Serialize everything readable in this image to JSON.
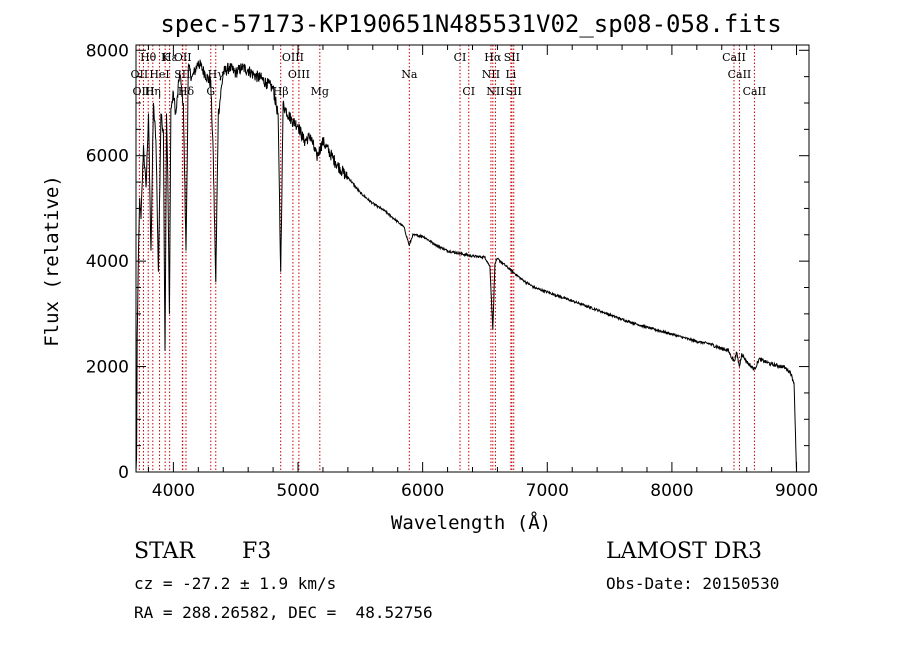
{
  "chart_data": {
    "type": "line",
    "title": "spec-57173-KP190651N485531V02_sp08-058.fits",
    "xlabel": "Wavelength (Å)",
    "ylabel": "Flux (relative)",
    "xlim": [
      3700,
      9100
    ],
    "ylim": [
      0,
      8100
    ],
    "xticks": [
      4000,
      5000,
      6000,
      7000,
      8000,
      9000
    ],
    "xtick_labels": [
      "4000",
      "5000",
      "6000",
      "7000",
      "8000",
      "9000"
    ],
    "yticks": [
      0,
      2000,
      4000,
      6000,
      8000
    ],
    "ytick_labels": [
      "0",
      "2000",
      "4000",
      "6000",
      "8000"
    ],
    "series": [
      {
        "name": "spectrum",
        "x": [
          3700,
          3705,
          3710,
          3720,
          3730,
          3740,
          3760,
          3780,
          3800,
          3820,
          3840,
          3860,
          3880,
          3900,
          3920,
          3933,
          3945,
          3955,
          3968,
          3980,
          4000,
          4020,
          4050,
          4080,
          4101,
          4120,
          4150,
          4200,
          4250,
          4300,
          4320,
          4340,
          4360,
          4400,
          4450,
          4500,
          4550,
          4600,
          4650,
          4700,
          4750,
          4800,
          4840,
          4861,
          4880,
          4900,
          4950,
          5000,
          5050,
          5100,
          5150,
          5200,
          5300,
          5400,
          5500,
          5600,
          5700,
          5800,
          5850,
          5893,
          5920,
          6000,
          6100,
          6200,
          6300,
          6400,
          6500,
          6540,
          6563,
          6580,
          6600,
          6700,
          6800,
          6900,
          7000,
          7200,
          7400,
          7600,
          7800,
          8000,
          8200,
          8300,
          8400,
          8450,
          8498,
          8520,
          8542,
          8560,
          8600,
          8662,
          8700,
          8800,
          8900,
          8950,
          8980,
          9000
        ],
        "y": [
          0,
          300,
          2600,
          4200,
          5200,
          4800,
          6200,
          5400,
          6800,
          4200,
          7000,
          6300,
          3800,
          6800,
          6500,
          2300,
          6800,
          5600,
          3000,
          6900,
          7200,
          6800,
          7600,
          7000,
          4200,
          7700,
          7500,
          7800,
          7600,
          7400,
          6000,
          3600,
          6800,
          7600,
          7700,
          7600,
          7700,
          7650,
          7550,
          7500,
          7400,
          7300,
          6800,
          3800,
          7000,
          6900,
          6700,
          6600,
          6300,
          6400,
          6000,
          6300,
          5900,
          5600,
          5300,
          5100,
          4950,
          4750,
          4650,
          4300,
          4500,
          4480,
          4320,
          4200,
          4150,
          4100,
          4080,
          3900,
          2700,
          3950,
          4050,
          3850,
          3650,
          3500,
          3420,
          3250,
          3080,
          2900,
          2750,
          2620,
          2480,
          2440,
          2350,
          2320,
          2100,
          2270,
          2000,
          2250,
          2100,
          1950,
          2150,
          2050,
          2000,
          1900,
          1700,
          0
        ]
      }
    ],
    "spectral_lines": [
      {
        "label": "Hθ",
        "wavelength": 3798,
        "row": 0
      },
      {
        "label": "K",
        "wavelength": 3934,
        "row": 0
      },
      {
        "label": "Hε",
        "wavelength": 3970,
        "row": 0
      },
      {
        "label": "OII",
        "wavelength": 4075,
        "row": 0
      },
      {
        "label": "OIII",
        "wavelength": 4959,
        "row": 0
      },
      {
        "label": "CI",
        "wavelength": 6300,
        "row": 0
      },
      {
        "label": "Hα",
        "wavelength": 6563,
        "row": 0
      },
      {
        "label": "SII",
        "wavelength": 6716,
        "row": 0
      },
      {
        "label": "CaII",
        "wavelength": 8498,
        "row": 0
      },
      {
        "label": "OII",
        "wavelength": 3727,
        "row": 1
      },
      {
        "label": "HeI",
        "wavelength": 3889,
        "row": 1
      },
      {
        "label": "SII",
        "wavelength": 4072,
        "row": 1
      },
      {
        "label": "Hγ",
        "wavelength": 4340,
        "row": 1
      },
      {
        "label": "OIII",
        "wavelength": 5007,
        "row": 1
      },
      {
        "label": "Na",
        "wavelength": 5893,
        "row": 1
      },
      {
        "label": "NII",
        "wavelength": 6548,
        "row": 1
      },
      {
        "label": "Li",
        "wavelength": 6708,
        "row": 1
      },
      {
        "label": "CaII",
        "wavelength": 8542,
        "row": 1
      },
      {
        "label": "OIII",
        "wavelength": 3760,
        "row": 2
      },
      {
        "label": "Hη",
        "wavelength": 3835,
        "row": 2
      },
      {
        "label": "Hδ",
        "wavelength": 4101,
        "row": 2
      },
      {
        "label": "G",
        "wavelength": 4300,
        "row": 2
      },
      {
        "label": "Hβ",
        "wavelength": 4861,
        "row": 2
      },
      {
        "label": "Mg",
        "wavelength": 5175,
        "row": 2
      },
      {
        "label": "CI",
        "wavelength": 6370,
        "row": 2
      },
      {
        "label": "NII",
        "wavelength": 6584,
        "row": 2
      },
      {
        "label": "SII",
        "wavelength": 6731,
        "row": 2
      },
      {
        "label": "CaII",
        "wavelength": 8662,
        "row": 2
      }
    ]
  },
  "info": {
    "object_type": "STAR",
    "subclass": "F3",
    "survey": "LAMOST DR3",
    "velocity": "cz = -27.2 ± 1.9 km/s",
    "obs_date": "Obs-Date: 20150530",
    "coords": "RA = 288.26582, DEC =  48.52756"
  },
  "colors": {
    "line_markers": "#cc0000",
    "spectrum": "#000000"
  }
}
